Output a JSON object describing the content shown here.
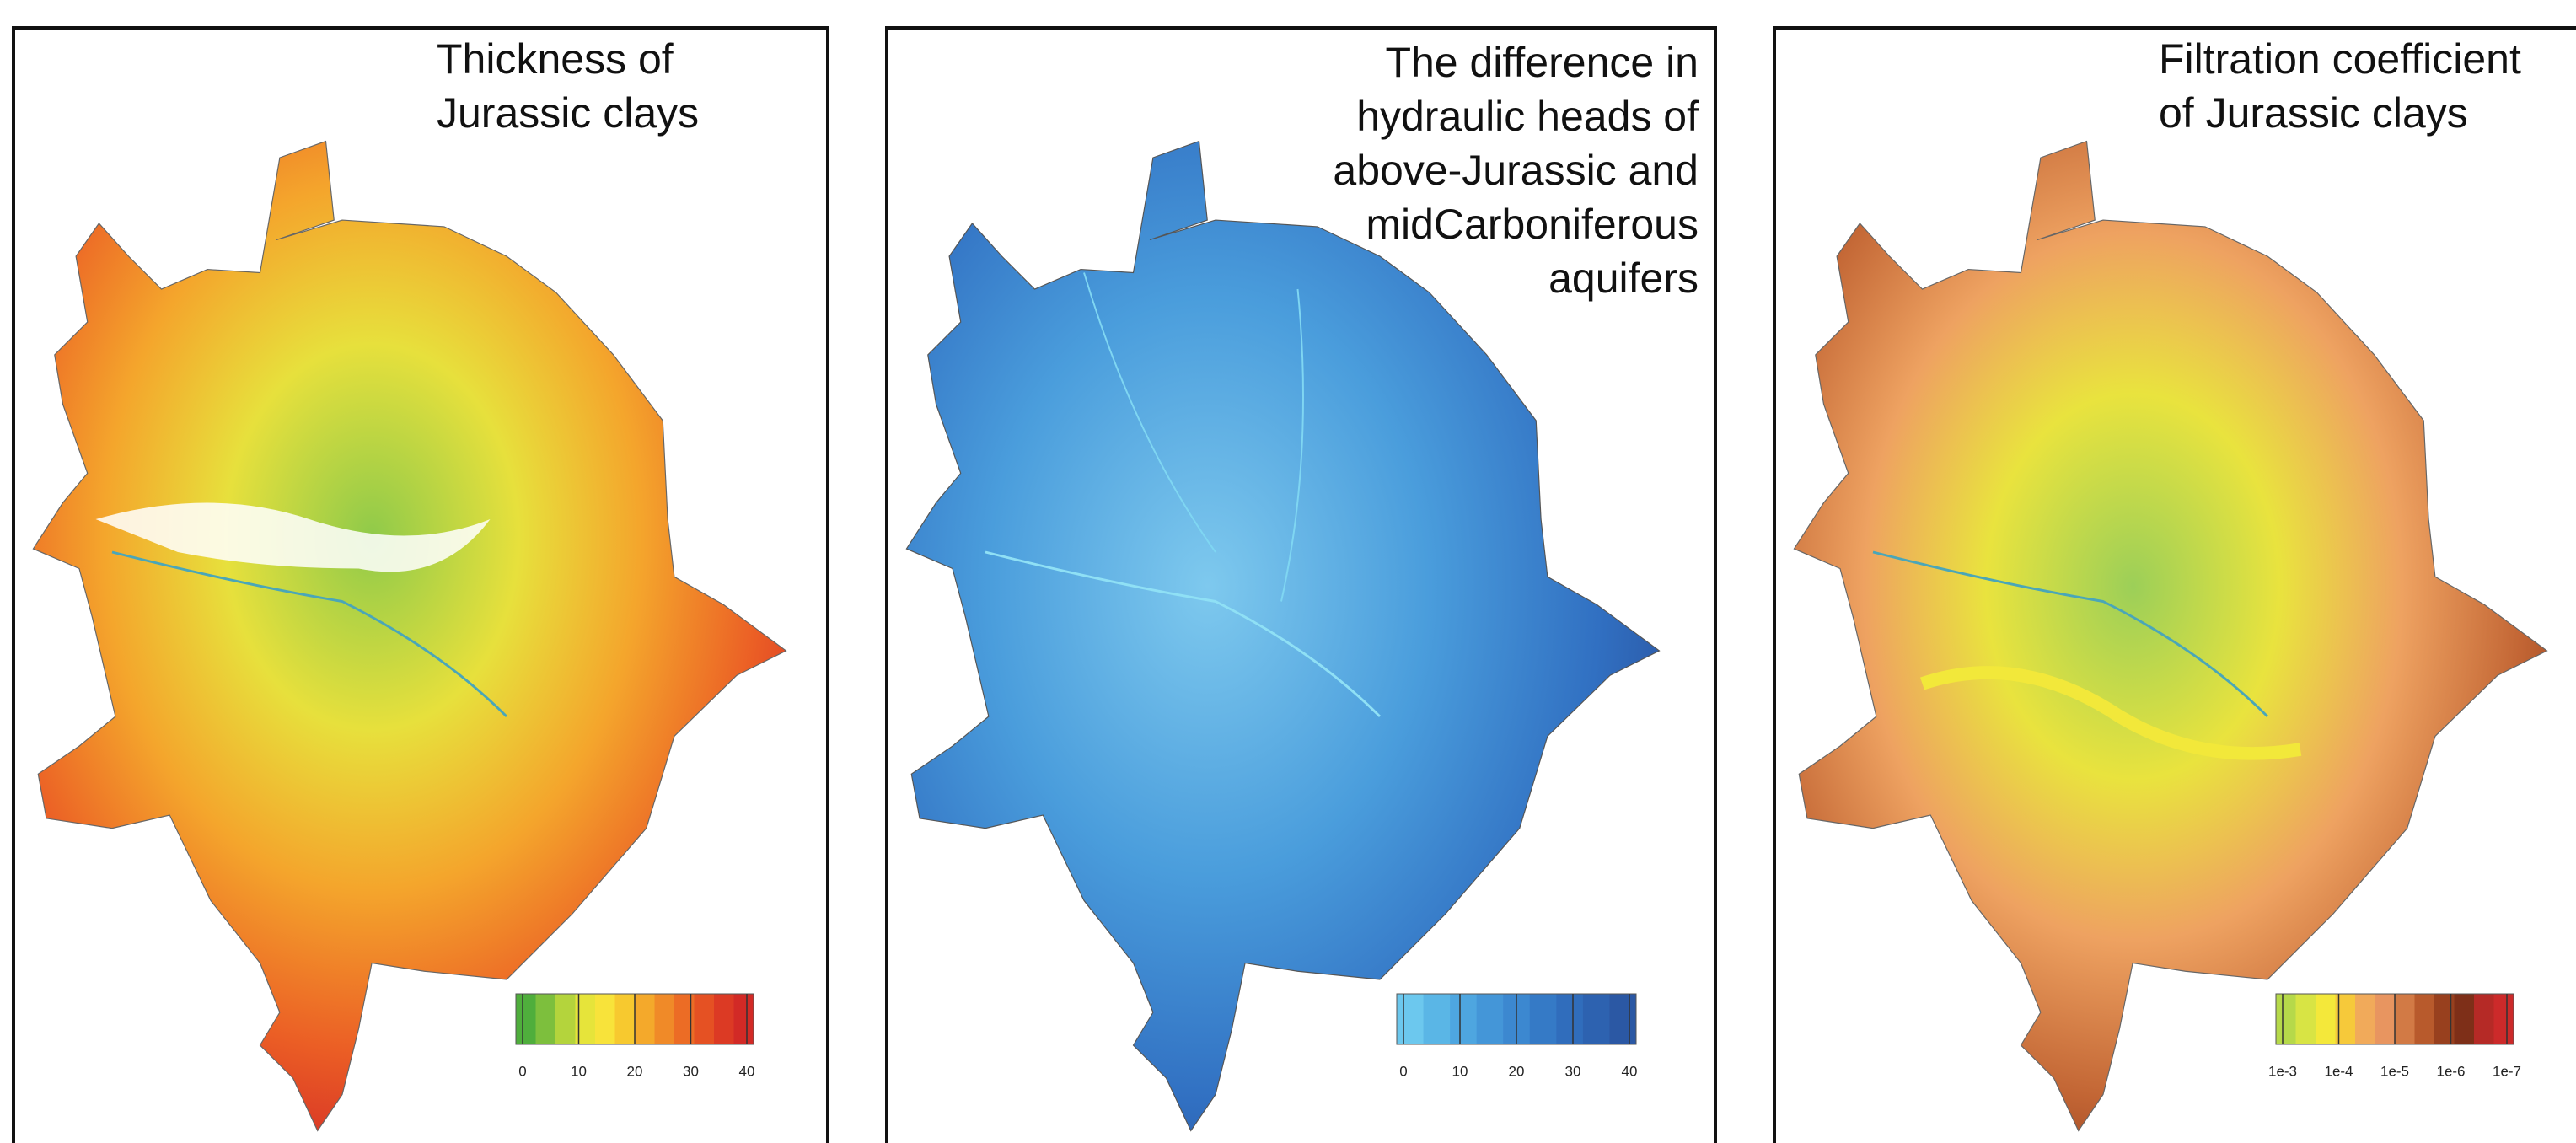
{
  "panels": [
    {
      "title_lines": [
        "Thickness of",
        "Jurassic clays"
      ],
      "align": "left",
      "colorbar": {
        "ticks": [
          0,
          10,
          20,
          30,
          40
        ],
        "colors": [
          "#4fae3c",
          "#7dbf3d",
          "#b4d43c",
          "#e6e43a",
          "#f8e33a",
          "#f7c92f",
          "#f4a92b",
          "#f08a28",
          "#ec6c25",
          "#e55123",
          "#dc3a24",
          "#d22a26"
        ]
      }
    },
    {
      "title_lines": [
        "The difference in",
        "hydraulic heads of",
        "above-Jurassic and",
        "midCarboniferous",
        "aquifers"
      ],
      "align": "right",
      "colorbar": {
        "ticks": [
          0,
          10,
          20,
          30,
          40
        ],
        "colors": [
          "#6cc8ee",
          "#5ab6e6",
          "#4ea6e0",
          "#4496d8",
          "#3c88d0",
          "#357ac6",
          "#306dbc",
          "#2d62b0",
          "#2b58a4"
        ]
      }
    },
    {
      "title_lines": [
        "Filtration coefficient",
        "of Jurassic clays"
      ],
      "align": "left",
      "colorbar": {
        "ticks": [
          "1e-3",
          "1e-4",
          "1e-5",
          "1e-6",
          "1e-7"
        ],
        "colors": [
          "#b6d94a",
          "#d8e444",
          "#f4e83a",
          "#f6c93a",
          "#f1aa5a",
          "#e89560",
          "#d27a45",
          "#b85a2c",
          "#98401e",
          "#7e2f18",
          "#b52a26",
          "#cc2a2a"
        ]
      }
    }
  ]
}
